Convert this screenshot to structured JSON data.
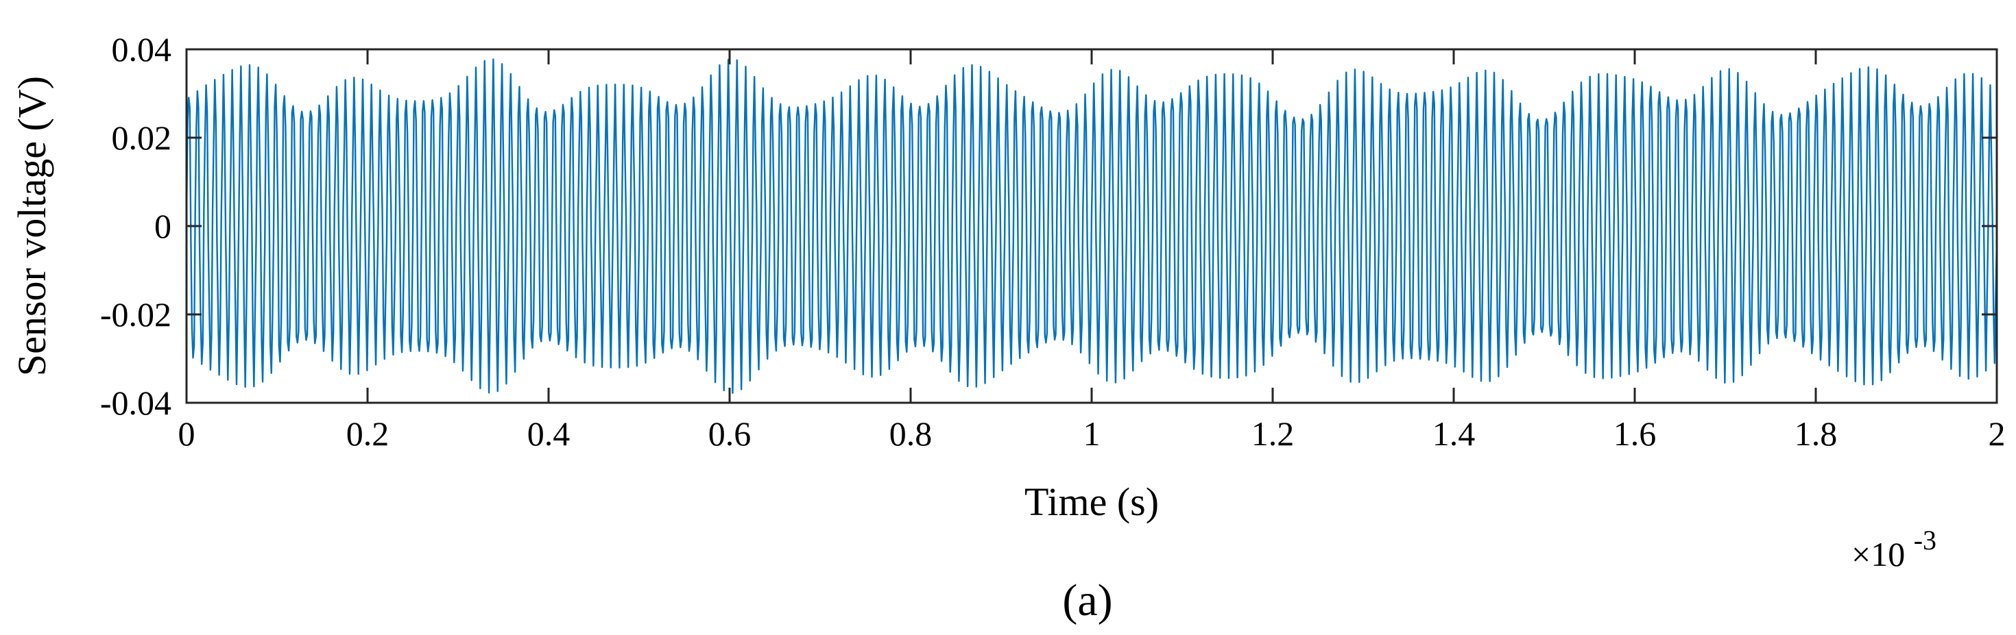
{
  "chart_data": {
    "type": "line",
    "title": "",
    "xlabel": "Time (s)",
    "ylabel": "Sensor voltage (V)",
    "x_scale_label": {
      "base": "×10",
      "exponent": "-3"
    },
    "panel_label": "(a)",
    "xlim": [
      0,
      2
    ],
    "ylim": [
      -0.04,
      0.04
    ],
    "x_ticks": [
      0,
      0.2,
      0.4,
      0.6,
      0.8,
      1,
      1.2,
      1.4,
      1.6,
      1.8,
      2
    ],
    "x_tick_labels": [
      "0",
      "0.2",
      "0.4",
      "0.6",
      "0.8",
      "1",
      "1.2",
      "1.4",
      "1.6",
      "1.8",
      "2"
    ],
    "y_ticks": [
      -0.04,
      -0.02,
      0,
      0.02,
      0.04
    ],
    "y_tick_labels": [
      "-0.04",
      "-0.02",
      "0",
      "0.02",
      "0.04"
    ],
    "grid": false,
    "legend": "none",
    "series": [
      {
        "color": "#0072BD",
        "signal": {
          "kind": "periodic oscillation",
          "cycles_over_xlim": 208,
          "amplitude_V": 0.031,
          "x_start": 0,
          "x_end": 2
        }
      }
    ]
  }
}
